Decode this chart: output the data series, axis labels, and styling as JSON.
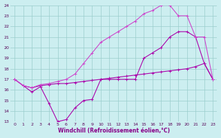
{
  "xlabel": "Windchill (Refroidissement éolien,°C)",
  "xlim": [
    -0.5,
    23.5
  ],
  "ylim": [
    13,
    24
  ],
  "yticks": [
    13,
    14,
    15,
    16,
    17,
    18,
    19,
    20,
    21,
    22,
    23,
    24
  ],
  "xticks": [
    0,
    1,
    2,
    3,
    4,
    5,
    6,
    7,
    8,
    9,
    10,
    11,
    12,
    13,
    14,
    15,
    16,
    17,
    18,
    19,
    20,
    21,
    22,
    23
  ],
  "background_color": "#cceef0",
  "grid_color": "#99cccc",
  "lines": [
    {
      "color": "#aa00aa",
      "x": [
        0,
        1,
        2,
        3,
        4,
        5,
        6,
        7,
        8,
        9,
        10,
        11,
        12,
        13,
        14,
        15,
        16,
        17,
        18,
        19,
        20,
        21,
        22,
        23
      ],
      "y": [
        17.0,
        16.4,
        15.8,
        16.3,
        14.7,
        13.0,
        13.2,
        14.3,
        15.0,
        15.1,
        17.0,
        17.0,
        17.0,
        17.0,
        17.0,
        19.0,
        19.5,
        20.0,
        21.0,
        21.5,
        21.5,
        21.0,
        18.5,
        17.0
      ]
    },
    {
      "color": "#aa00aa",
      "x": [
        0,
        1,
        2,
        3,
        4,
        5,
        6,
        7,
        8,
        9,
        10,
        11,
        12,
        13,
        14,
        15,
        16,
        17,
        18,
        19,
        20,
        21,
        22,
        23
      ],
      "y": [
        17.0,
        16.4,
        16.2,
        16.4,
        16.5,
        16.6,
        16.6,
        16.7,
        16.8,
        16.9,
        17.0,
        17.1,
        17.2,
        17.3,
        17.4,
        17.5,
        17.6,
        17.7,
        17.8,
        17.9,
        18.0,
        18.2,
        18.5,
        17.0
      ]
    },
    {
      "color": "#cc44cc",
      "x": [
        0,
        1,
        2,
        3,
        4,
        5,
        6,
        7,
        8,
        9,
        10,
        11,
        12,
        13,
        14,
        15,
        16,
        17,
        18,
        19,
        20,
        21,
        22,
        23
      ],
      "y": [
        17.0,
        16.4,
        16.2,
        16.5,
        16.6,
        16.8,
        17.0,
        17.5,
        18.5,
        19.5,
        20.5,
        21.0,
        21.5,
        22.0,
        22.5,
        23.2,
        23.5,
        24.0,
        24.0,
        23.0,
        23.0,
        21.0,
        21.0,
        17.0
      ]
    }
  ]
}
